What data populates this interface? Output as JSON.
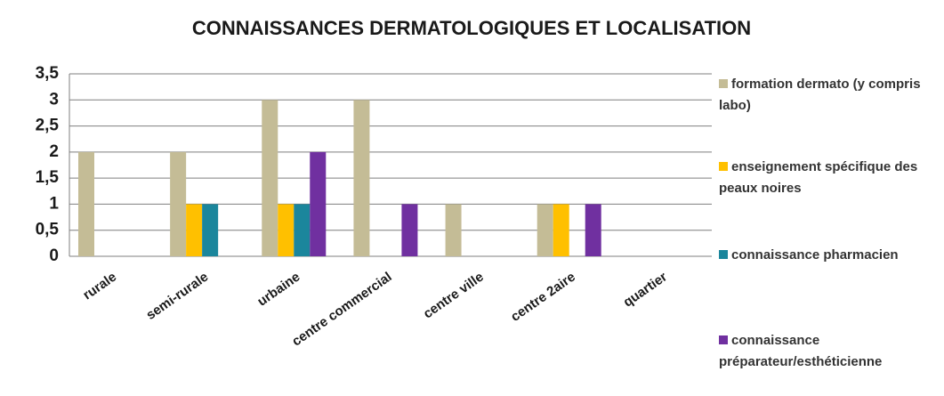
{
  "chart_data": {
    "type": "bar",
    "title": "CONNAISSANCES DERMATOLOGIQUES ET LOCALISATION",
    "categories": [
      "rurale",
      "semi-rurale",
      "urbaine",
      "centre commercial",
      "centre ville",
      "centre 2aire",
      "quartier"
    ],
    "series": [
      {
        "name": "formation dermato (y compris labo)",
        "color": "#c4bc96",
        "values": [
          2,
          2,
          3,
          3,
          1,
          1,
          0
        ]
      },
      {
        "name": "enseignement spécifique des peaux noires",
        "color": "#ffc000",
        "values": [
          0,
          1,
          1,
          0,
          0,
          1,
          0
        ]
      },
      {
        "name": "connaissance pharmacien",
        "color": "#1b869c",
        "values": [
          0,
          1,
          1,
          0,
          0,
          0,
          0
        ]
      },
      {
        "name": "connaissance préparateur/esthéticienne",
        "color": "#7030a0",
        "values": [
          0,
          0,
          2,
          1,
          0,
          1,
          0
        ]
      }
    ],
    "ylim": [
      0,
      3.5
    ],
    "yticks": [
      0,
      {
        "value": 0.5,
        "label": "0,5"
      },
      1,
      {
        "value": 1.5,
        "label": "1,5"
      },
      2,
      {
        "value": 2.5,
        "label": "2,5"
      },
      3,
      {
        "value": 3.5,
        "label": "3,5"
      }
    ],
    "grid": true,
    "legend": "right"
  }
}
